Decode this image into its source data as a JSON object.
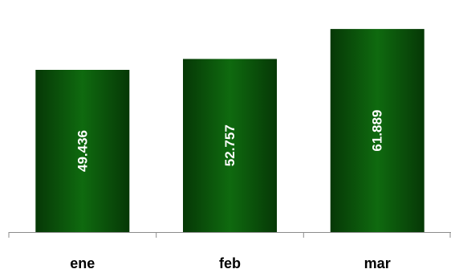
{
  "chart_data": {
    "type": "bar",
    "categories": [
      "ene",
      "feb",
      "mar"
    ],
    "values": [
      49436,
      52757,
      61889
    ],
    "data_labels": [
      "49.436",
      "52.757",
      "61.889"
    ],
    "title": "",
    "xlabel": "",
    "ylabel": "",
    "ylim": [
      0,
      69500
    ],
    "grid": false,
    "legend": "none",
    "data_label_orientation": "vertical",
    "colors": {
      "bar_edge": "#063806",
      "bar_center": "#0f6a0f",
      "axis": "#8c8c8c",
      "data_label": "#ffffff",
      "tick_label": "#000000"
    }
  }
}
